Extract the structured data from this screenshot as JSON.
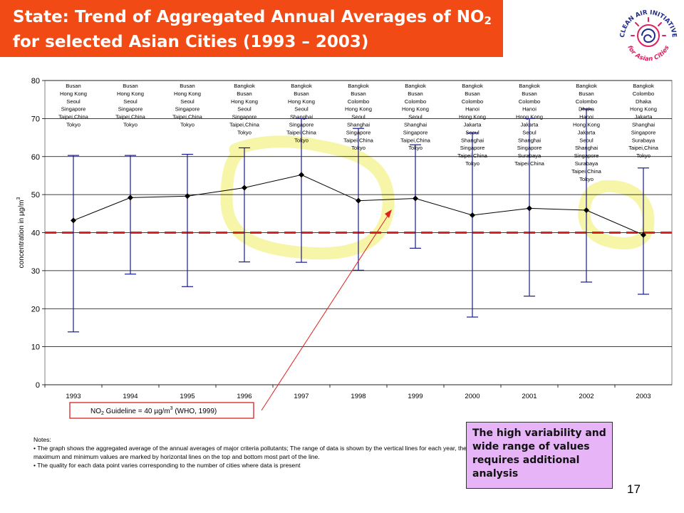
{
  "slide": {
    "title_line1": "State: Trend of Aggregated Annual Averages of NO",
    "title_sub": "2",
    "title_line2": "for selected Asian Cities (1993 – 2003)",
    "logo_text_top": "CLEAN AIR INITIATIVE",
    "logo_text_bottom": "for Asian Cities",
    "callout": "The high variability and wide range of values requires additional analysis",
    "page_number": "17",
    "notes_heading": "Notes:",
    "notes": [
      "• The graph shows the aggregated average of the annual averages of major criteria pollutants; The range of data is shown by the vertical lines for each year, the maximum and minimum values are marked by horizontal lines on the top and bottom most part of the line.",
      "• The quality for each data point varies corresponding to the number of cities where data is present"
    ]
  },
  "colors": {
    "title_bg": "#f24a14",
    "mean_line": "#000000",
    "range_bars": "#1a1a8c",
    "guideline": "#e02020",
    "highlight": "#f7f5a8",
    "callout_bg": "#e7b5f7",
    "arrow": "#e02020",
    "plot_border": "#808080"
  },
  "chart_data": {
    "type": "line",
    "title": "",
    "xlabel": "",
    "ylabel": "concentration in µg/m",
    "ylabel_sup": "3",
    "ylim": [
      0,
      80
    ],
    "yticks": [
      0,
      10,
      20,
      30,
      40,
      50,
      60,
      70,
      80
    ],
    "grid": true,
    "categories": [
      "1993",
      "1994",
      "1995",
      "1996",
      "1997",
      "1998",
      "1999",
      "2000",
      "2001",
      "2002",
      "2003"
    ],
    "series": [
      {
        "values": [
          43.2,
          49.2,
          49.6,
          51.8,
          55.2,
          48.4,
          49.0,
          44.6,
          46.4,
          45.9,
          39.4
        ]
      }
    ],
    "range_max": [
      60.3,
      60.3,
      60.6,
      62.3,
      70.0,
      67.4,
      63.1,
      66.2,
      70.0,
      72.5,
      57.0
    ],
    "range_min": [
      13.9,
      29.1,
      25.8,
      32.3,
      32.2,
      30.1,
      35.9,
      17.8,
      23.3,
      27.0,
      23.8
    ],
    "city_lists": [
      [
        "Busan",
        "Hong Kong",
        "Seoul",
        "Singapore",
        "Taipei,China",
        "Tokyo"
      ],
      [
        "Busan",
        "Hong Kong",
        "Seoul",
        "Singapore",
        "Taipei,China",
        "Tokyo"
      ],
      [
        "Busan",
        "Hong Kong",
        "Seoul",
        "Singapore",
        "Taipei,China",
        "Tokyo"
      ],
      [
        "Bangkok",
        "Busan",
        "Hong Kong",
        "Seoul",
        "Singapore",
        "Taipei,China",
        "Tokyo"
      ],
      [
        "Bangkok",
        "Busan",
        "Hong Kong",
        "Seoul",
        "Shanghai",
        "Singapore",
        "Taipei,China",
        "Tokyo"
      ],
      [
        "Bangkok",
        "Busan",
        "Colombo",
        "Hong Kong",
        "Seoul",
        "Shanghai",
        "Singapore",
        "Taipei,China",
        "Tokyo"
      ],
      [
        "Bangkok",
        "Busan",
        "Colombo",
        "Hong Kong",
        "Seoul",
        "Shanghai",
        "Singapore",
        "Taipei,China",
        "Tokyo"
      ],
      [
        "Bangkok",
        "Busan",
        "Colombo",
        "Hanoi",
        "Hong Kong",
        "Jakarta",
        "Seoul",
        "Shanghai",
        "Singapore",
        "Taipei,China",
        "Tokyo"
      ],
      [
        "Bangkok",
        "Busan",
        "Colombo",
        "Hanoi",
        "Hong Kong",
        "Jakarta",
        "Seoul",
        "Shanghai",
        "Singapore",
        "Surabaya",
        "Taipei,China"
      ],
      [
        "Bangkok",
        "Busan",
        "Colombo",
        "Dhaka",
        "Hanoi",
        "Hong Kong",
        "Jakarta",
        "Seoul",
        "Shanghai",
        "Singapore",
        "Surabaya",
        "Taipei,China",
        "Tokyo"
      ],
      [
        "Bangkok",
        "Colombo",
        "Dhaka",
        "Hong Kong",
        "Jakarta",
        "Shanghai",
        "Singapore",
        "Surabaya",
        "Taipei,China",
        "Tokyo"
      ]
    ],
    "guideline": {
      "value": 40,
      "label_pre": "NO",
      "label_sub": "2",
      "label_mid": " Guideline = 40 µg/m",
      "label_sup": "3",
      "label_post": " (WHO, 1999)"
    }
  }
}
